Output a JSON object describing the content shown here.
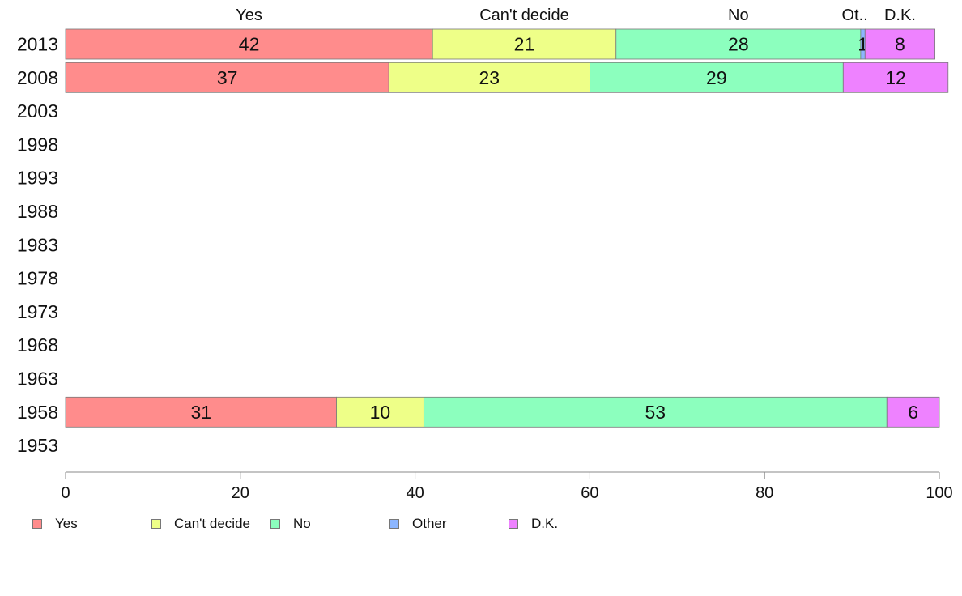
{
  "chart_data": {
    "type": "bar",
    "orientation": "horizontal",
    "stacked": true,
    "categories": [
      "2013",
      "2008",
      "2003",
      "1998",
      "1993",
      "1988",
      "1983",
      "1978",
      "1973",
      "1968",
      "1963",
      "1958",
      "1953"
    ],
    "series": [
      {
        "name": "Yes",
        "color": "#ff8c8c",
        "values": [
          42,
          37,
          null,
          null,
          null,
          null,
          null,
          null,
          null,
          null,
          null,
          31,
          null
        ],
        "labels": [
          "42",
          "37",
          "",
          "",
          "",
          "",
          "",
          "",
          "",
          "",
          "",
          "31",
          ""
        ]
      },
      {
        "name": "Can't decide",
        "color": "#eeff88",
        "values": [
          21,
          23,
          null,
          null,
          null,
          null,
          null,
          null,
          null,
          null,
          null,
          10,
          null
        ],
        "labels": [
          "21",
          "23",
          "",
          "",
          "",
          "",
          "",
          "",
          "",
          "",
          "",
          "10",
          ""
        ]
      },
      {
        "name": "No",
        "color": "#8cffbe",
        "values": [
          28,
          29,
          null,
          null,
          null,
          null,
          null,
          null,
          null,
          null,
          null,
          53,
          null
        ],
        "labels": [
          "28",
          "29",
          "",
          "",
          "",
          "",
          "",
          "",
          "",
          "",
          "",
          "53",
          ""
        ]
      },
      {
        "name": "Other",
        "color": "#8cb6ff",
        "values": [
          0.5,
          0,
          null,
          null,
          null,
          null,
          null,
          null,
          null,
          null,
          null,
          0,
          null
        ],
        "labels": [
          "1",
          "",
          "",
          "",
          "",
          "",
          "",
          "",
          "",
          "",
          "",
          "",
          ""
        ]
      },
      {
        "name": "D.K.",
        "color": "#ee82ff",
        "values": [
          8,
          12,
          null,
          null,
          null,
          null,
          null,
          null,
          null,
          null,
          null,
          6,
          null
        ],
        "labels": [
          "8",
          "12",
          "",
          "",
          "",
          "",
          "",
          "",
          "",
          "",
          "",
          "6",
          ""
        ]
      }
    ],
    "top_labels": [
      "Yes",
      "Can't decide",
      "No",
      "Ot..",
      "D.K."
    ],
    "xlim": [
      0,
      100
    ],
    "xticks": [
      0,
      20,
      40,
      60,
      80,
      100
    ],
    "grid": false,
    "legend": "bottom-left"
  },
  "legend": {
    "items": [
      {
        "label": "Yes",
        "color": "#ff8c8c"
      },
      {
        "label": "Can't decide",
        "color": "#eeff88"
      },
      {
        "label": "No",
        "color": "#8cffbe"
      },
      {
        "label": "Other",
        "color": "#8cb6ff"
      },
      {
        "label": "D.K.",
        "color": "#ee82ff"
      }
    ]
  }
}
